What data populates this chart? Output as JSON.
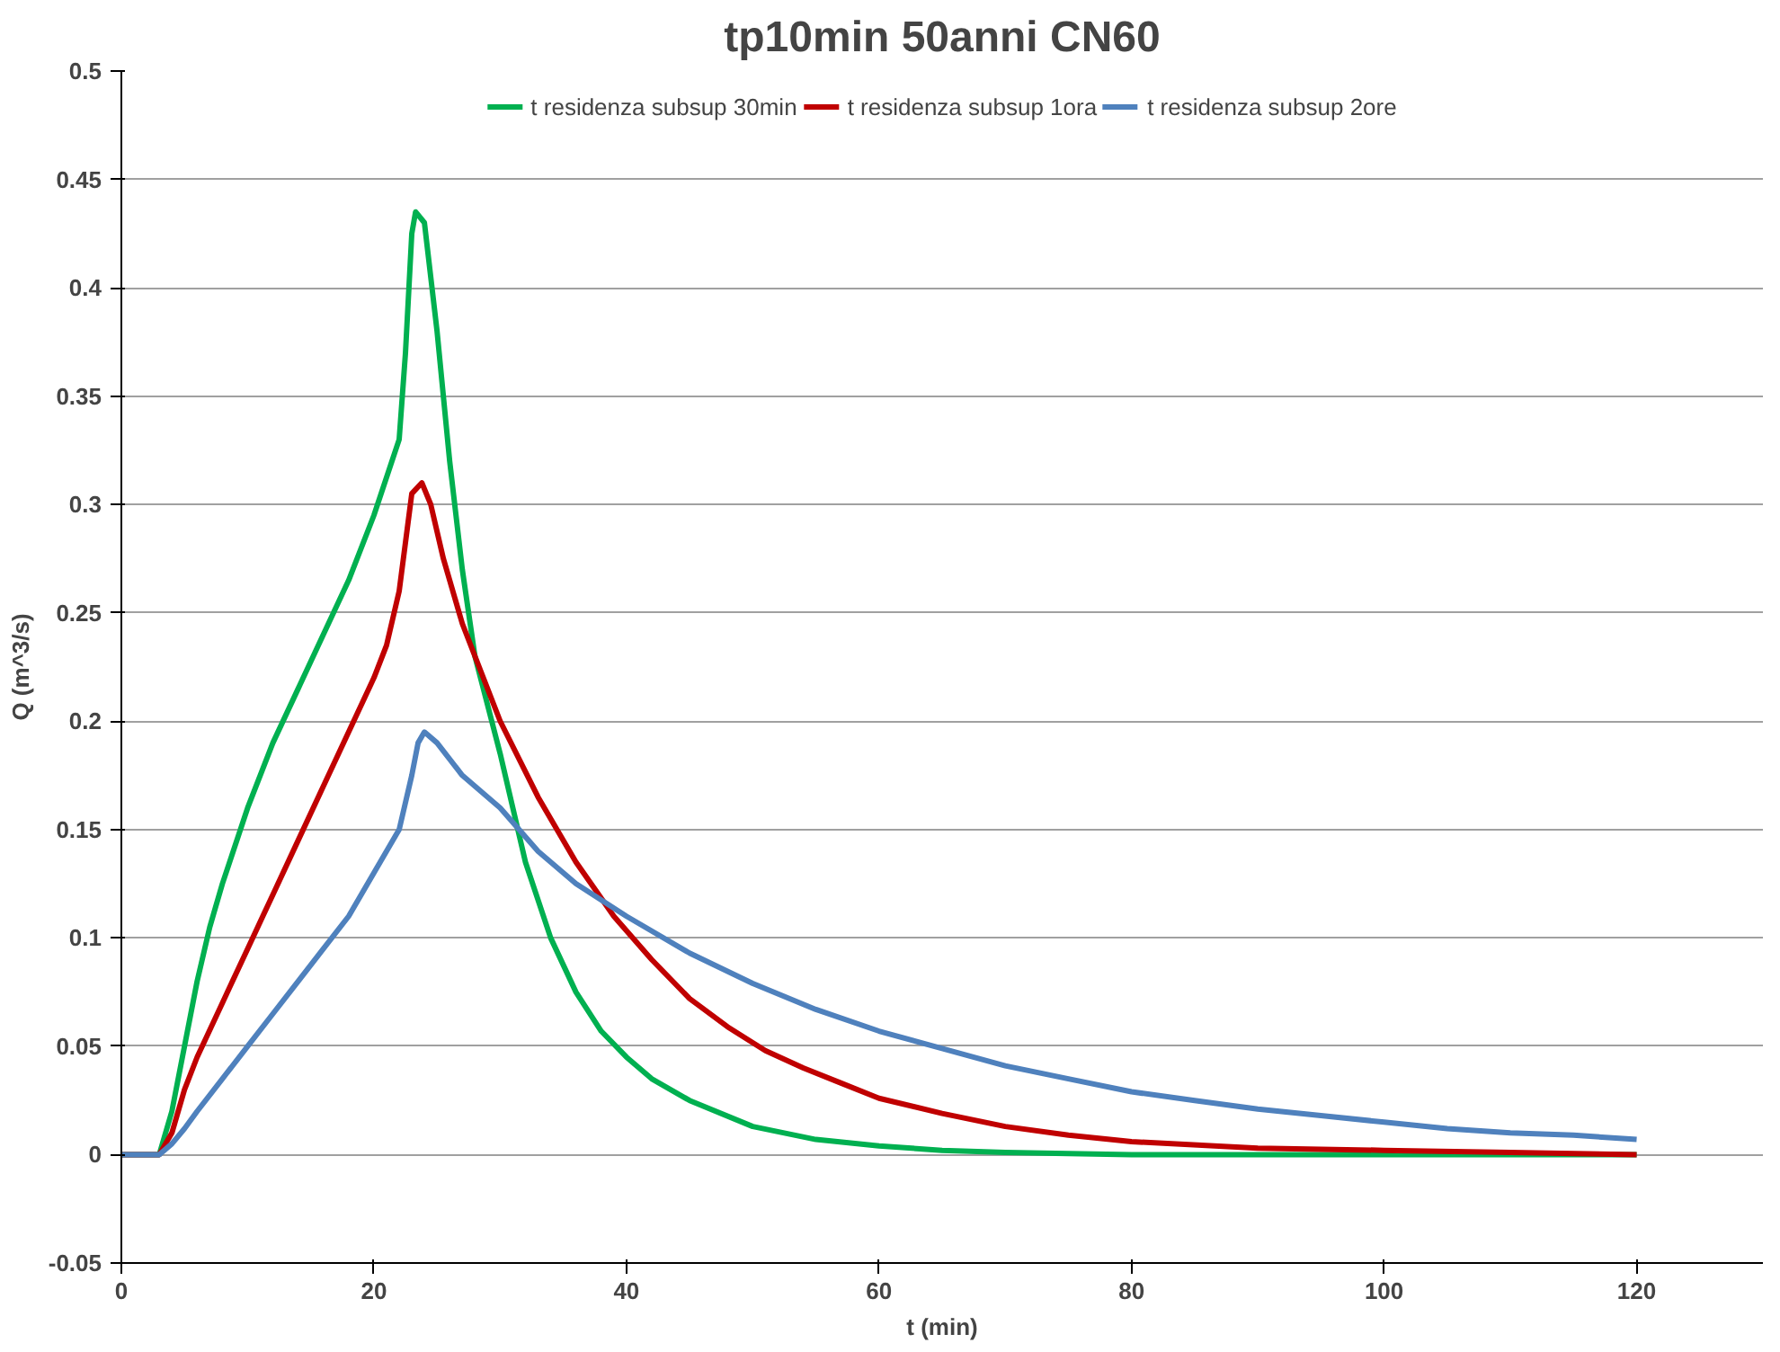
{
  "chart_data": {
    "type": "line",
    "title": "tp10min 50anni CN60",
    "xlabel": "t (min)",
    "ylabel": "Q (m^3/s)",
    "xlim": [
      0,
      130
    ],
    "xticks": [
      0,
      20,
      40,
      60,
      80,
      100,
      120
    ],
    "ylim": [
      -0.05,
      0.5
    ],
    "yticks": [
      -0.05,
      0,
      0.05,
      0.1,
      0.15,
      0.2,
      0.25,
      0.3,
      0.35,
      0.4,
      0.45,
      0.5
    ],
    "grid": "y",
    "legend": "top",
    "marker": "none",
    "line_style": "solid",
    "series": [
      {
        "name": "t residenza subsup 30min",
        "color": "#00b050",
        "x": [
          0,
          2,
          3,
          4,
          5,
          6,
          7,
          8,
          10,
          12,
          14,
          16,
          18,
          20,
          22,
          22.5,
          23,
          23.3,
          24,
          25,
          26,
          27,
          28,
          30,
          32,
          34,
          36,
          38,
          40,
          42,
          45,
          50,
          55,
          60,
          65,
          70,
          80,
          90,
          100,
          120
        ],
        "values": [
          0,
          0,
          0,
          0.02,
          0.05,
          0.08,
          0.105,
          0.125,
          0.16,
          0.19,
          0.215,
          0.24,
          0.265,
          0.295,
          0.33,
          0.37,
          0.425,
          0.435,
          0.43,
          0.38,
          0.32,
          0.27,
          0.23,
          0.185,
          0.135,
          0.1,
          0.075,
          0.057,
          0.045,
          0.035,
          0.025,
          0.013,
          0.007,
          0.004,
          0.002,
          0.001,
          0,
          0,
          0,
          0
        ]
      },
      {
        "name": "t residenza subsup 1ora",
        "color": "#c00000",
        "x": [
          0,
          3,
          4,
          5,
          6,
          8,
          10,
          12,
          14,
          16,
          18,
          20,
          21,
          22,
          23,
          23.8,
          24.5,
          25.5,
          27,
          30,
          33,
          36,
          39,
          42,
          45,
          48,
          51,
          54,
          57,
          60,
          65,
          70,
          75,
          80,
          90,
          100,
          110,
          120
        ],
        "values": [
          0,
          0,
          0.01,
          0.03,
          0.045,
          0.07,
          0.095,
          0.12,
          0.145,
          0.17,
          0.195,
          0.22,
          0.235,
          0.26,
          0.305,
          0.31,
          0.3,
          0.275,
          0.245,
          0.2,
          0.165,
          0.135,
          0.11,
          0.09,
          0.072,
          0.059,
          0.048,
          0.04,
          0.033,
          0.026,
          0.019,
          0.013,
          0.009,
          0.006,
          0.003,
          0.002,
          0.001,
          0
        ]
      },
      {
        "name": "t residenza subsup 2ore",
        "color": "#4f81bd",
        "x": [
          0,
          3,
          4,
          5,
          6,
          8,
          10,
          12,
          14,
          16,
          18,
          20,
          22,
          23,
          23.5,
          24,
          25,
          27,
          30,
          33,
          36,
          40,
          45,
          50,
          55,
          60,
          65,
          70,
          75,
          80,
          85,
          90,
          95,
          100,
          105,
          110,
          115,
          120
        ],
        "values": [
          0,
          0,
          0.005,
          0.012,
          0.02,
          0.035,
          0.05,
          0.065,
          0.08,
          0.095,
          0.11,
          0.13,
          0.15,
          0.175,
          0.19,
          0.195,
          0.19,
          0.175,
          0.16,
          0.14,
          0.125,
          0.11,
          0.093,
          0.079,
          0.067,
          0.057,
          0.049,
          0.041,
          0.035,
          0.029,
          0.025,
          0.021,
          0.018,
          0.015,
          0.012,
          0.01,
          0.009,
          0.007
        ]
      }
    ]
  }
}
